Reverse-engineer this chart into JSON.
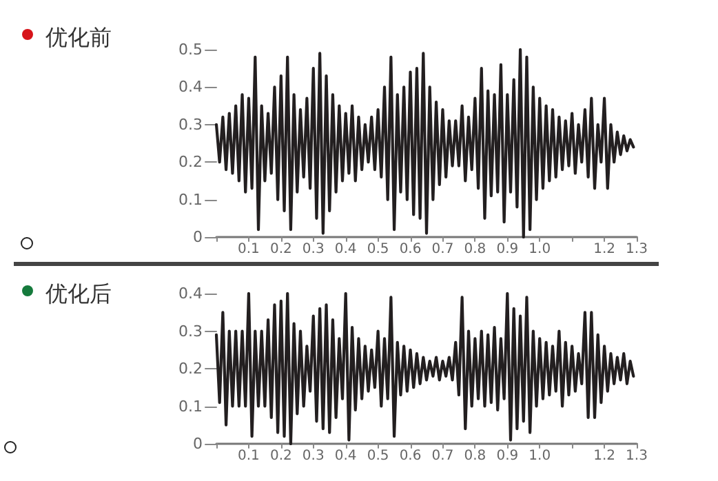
{
  "chart_data": [
    {
      "type": "line",
      "title": "优化前",
      "color": "#231f20",
      "marker": "none",
      "line_style": "solid",
      "grid": false,
      "x": [
        0,
        0.01,
        0.02,
        0.03,
        0.04,
        0.05,
        0.06,
        0.07,
        0.08,
        0.09,
        0.1,
        0.11,
        0.12,
        0.13,
        0.14,
        0.15,
        0.16,
        0.17,
        0.18,
        0.19,
        0.2,
        0.21,
        0.22,
        0.23,
        0.24,
        0.25,
        0.26,
        0.27,
        0.28,
        0.29,
        0.3,
        0.31,
        0.32,
        0.33,
        0.34,
        0.35,
        0.36,
        0.37,
        0.38,
        0.39,
        0.4,
        0.41,
        0.42,
        0.43,
        0.44,
        0.45,
        0.46,
        0.47,
        0.48,
        0.49,
        0.5,
        0.51,
        0.52,
        0.53,
        0.54,
        0.55,
        0.56,
        0.57,
        0.58,
        0.59,
        0.6,
        0.61,
        0.62,
        0.63,
        0.64,
        0.65,
        0.66,
        0.67,
        0.68,
        0.69,
        0.7,
        0.71,
        0.72,
        0.73,
        0.74,
        0.75,
        0.76,
        0.77,
        0.78,
        0.79,
        0.8,
        0.81,
        0.82,
        0.83,
        0.84,
        0.85,
        0.86,
        0.87,
        0.88,
        0.89,
        0.9,
        0.91,
        0.92,
        0.93,
        0.94,
        0.95,
        0.96,
        0.97,
        0.98,
        0.99,
        1,
        1.01,
        1.02,
        1.03,
        1.04,
        1.05,
        1.06,
        1.07,
        1.08,
        1.09,
        1.1,
        1.11,
        1.12,
        1.13,
        1.14,
        1.15,
        1.16,
        1.17,
        1.18,
        1.19,
        1.2,
        1.21,
        1.22,
        1.23,
        1.24,
        1.25,
        1.26,
        1.27,
        1.28,
        1.29
      ],
      "values": [
        0.3,
        0.2,
        0.32,
        0.18,
        0.33,
        0.17,
        0.35,
        0.15,
        0.38,
        0.12,
        0.37,
        0.13,
        0.48,
        0.02,
        0.35,
        0.15,
        0.33,
        0.17,
        0.4,
        0.1,
        0.43,
        0.07,
        0.48,
        0.02,
        0.38,
        0.12,
        0.34,
        0.16,
        0.37,
        0.13,
        0.45,
        0.05,
        0.49,
        0.01,
        0.43,
        0.07,
        0.38,
        0.12,
        0.35,
        0.15,
        0.33,
        0.17,
        0.35,
        0.15,
        0.32,
        0.18,
        0.3,
        0.2,
        0.32,
        0.18,
        0.34,
        0.16,
        0.4,
        0.1,
        0.48,
        0.02,
        0.38,
        0.12,
        0.4,
        0.1,
        0.44,
        0.06,
        0.45,
        0.05,
        0.49,
        0.01,
        0.4,
        0.1,
        0.36,
        0.14,
        0.34,
        0.16,
        0.31,
        0.19,
        0.31,
        0.19,
        0.35,
        0.15,
        0.32,
        0.18,
        0.37,
        0.13,
        0.45,
        0.05,
        0.39,
        0.11,
        0.38,
        0.12,
        0.46,
        0.04,
        0.38,
        0.12,
        0.42,
        0.08,
        0.5,
        0,
        0.48,
        0.02,
        0.4,
        0.1,
        0.37,
        0.13,
        0.35,
        0.15,
        0.34,
        0.16,
        0.32,
        0.18,
        0.31,
        0.19,
        0.33,
        0.17,
        0.3,
        0.2,
        0.34,
        0.16,
        0.37,
        0.13,
        0.3,
        0.2,
        0.37,
        0.13,
        0.3,
        0.2,
        0.28,
        0.22,
        0.27,
        0.23,
        0.26,
        0.24
      ],
      "xlim": [
        0,
        1.3
      ],
      "ylim": [
        0,
        0.5
      ],
      "xticks": [
        {
          "value": 0,
          "label": null
        },
        0.1,
        0.2,
        0.3,
        0.4,
        0.5,
        0.6,
        0.7,
        0.8,
        0.9,
        {
          "value": 1,
          "label": "1.0"
        },
        {
          "value": 1.1,
          "label": null
        },
        1.2,
        1.3
      ],
      "yticks": [
        0,
        0.1,
        0.2,
        0.3,
        0.4,
        0.5
      ]
    },
    {
      "type": "line",
      "title": "优化后",
      "color": "#231f20",
      "marker": "none",
      "line_style": "solid",
      "grid": false,
      "x": [
        0,
        0.01,
        0.02,
        0.03,
        0.04,
        0.05,
        0.06,
        0.07,
        0.08,
        0.09,
        0.1,
        0.11,
        0.12,
        0.13,
        0.14,
        0.15,
        0.16,
        0.17,
        0.18,
        0.19,
        0.2,
        0.21,
        0.22,
        0.23,
        0.24,
        0.25,
        0.26,
        0.27,
        0.28,
        0.29,
        0.3,
        0.31,
        0.32,
        0.33,
        0.34,
        0.35,
        0.36,
        0.37,
        0.38,
        0.39,
        0.4,
        0.41,
        0.42,
        0.43,
        0.44,
        0.45,
        0.46,
        0.47,
        0.48,
        0.49,
        0.5,
        0.51,
        0.52,
        0.53,
        0.54,
        0.55,
        0.56,
        0.57,
        0.58,
        0.59,
        0.6,
        0.61,
        0.62,
        0.63,
        0.64,
        0.65,
        0.66,
        0.67,
        0.68,
        0.69,
        0.7,
        0.71,
        0.72,
        0.73,
        0.74,
        0.75,
        0.76,
        0.77,
        0.78,
        0.79,
        0.8,
        0.81,
        0.82,
        0.83,
        0.84,
        0.85,
        0.86,
        0.87,
        0.88,
        0.89,
        0.9,
        0.91,
        0.92,
        0.93,
        0.94,
        0.95,
        0.96,
        0.97,
        0.98,
        0.99,
        1,
        1.01,
        1.02,
        1.03,
        1.04,
        1.05,
        1.06,
        1.07,
        1.08,
        1.09,
        1.1,
        1.11,
        1.12,
        1.13,
        1.14,
        1.15,
        1.16,
        1.17,
        1.18,
        1.19,
        1.2,
        1.21,
        1.22,
        1.23,
        1.24,
        1.25,
        1.26,
        1.27,
        1.28,
        1.29
      ],
      "values": [
        0.29,
        0.11,
        0.35,
        0.05,
        0.3,
        0.1,
        0.3,
        0.1,
        0.3,
        0.1,
        0.4,
        0.02,
        0.3,
        0.1,
        0.3,
        0.1,
        0.33,
        0.07,
        0.37,
        0.03,
        0.38,
        0.02,
        0.4,
        0,
        0.32,
        0.08,
        0.3,
        0.1,
        0.26,
        0.14,
        0.34,
        0.06,
        0.36,
        0.04,
        0.37,
        0.03,
        0.33,
        0.07,
        0.28,
        0.12,
        0.4,
        0.01,
        0.31,
        0.09,
        0.28,
        0.12,
        0.26,
        0.14,
        0.25,
        0.15,
        0.3,
        0.1,
        0.28,
        0.12,
        0.39,
        0.02,
        0.27,
        0.13,
        0.26,
        0.14,
        0.25,
        0.15,
        0.24,
        0.16,
        0.23,
        0.17,
        0.22,
        0.18,
        0.23,
        0.17,
        0.22,
        0.18,
        0.23,
        0.17,
        0.27,
        0.13,
        0.39,
        0.04,
        0.3,
        0.1,
        0.28,
        0.12,
        0.3,
        0.1,
        0.29,
        0.11,
        0.31,
        0.09,
        0.28,
        0.12,
        0.4,
        0.01,
        0.36,
        0.04,
        0.34,
        0.06,
        0.39,
        0.03,
        0.3,
        0.1,
        0.28,
        0.12,
        0.27,
        0.13,
        0.26,
        0.14,
        0.3,
        0.1,
        0.27,
        0.13,
        0.26,
        0.14,
        0.24,
        0.16,
        0.35,
        0.07,
        0.35,
        0.07,
        0.29,
        0.11,
        0.26,
        0.14,
        0.24,
        0.16,
        0.23,
        0.17,
        0.24,
        0.16,
        0.22,
        0.18
      ],
      "xlim": [
        0,
        1.3
      ],
      "ylim": [
        0,
        0.4
      ],
      "xticks": [
        {
          "value": 0,
          "label": null
        },
        0.1,
        0.2,
        0.3,
        0.4,
        0.5,
        0.6,
        0.7,
        0.8,
        0.9,
        {
          "value": 1,
          "label": "1.0"
        },
        {
          "value": 1.1,
          "label": null
        },
        1.2,
        1.3
      ],
      "yticks": [
        0,
        0.1,
        0.2,
        0.3,
        0.4
      ]
    }
  ]
}
